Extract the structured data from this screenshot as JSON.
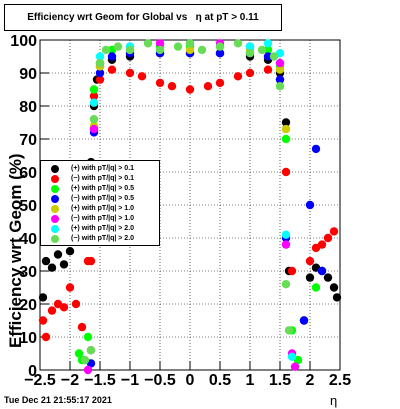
{
  "title": "Efficiency wrt Geom for Global vs   η at pT > 0.11",
  "datestamp": "Tue Dec 21 21:55:17 2021",
  "chart_data": {
    "type": "scatter",
    "title": "Efficiency wrt Geom for Global vs   η at pT > 0.11",
    "xlabel": "η",
    "ylabel": "Efficiency wrt Geom (%)",
    "xlim": [
      -2.5,
      2.5
    ],
    "ylim": [
      0,
      100
    ],
    "x_ticks": [
      "−2.5",
      "−2",
      "−1.5",
      "−1",
      "−0.5",
      "0",
      "0.5",
      "1",
      "1.5",
      "2",
      "2.5"
    ],
    "y_ticks": [
      "0",
      "10",
      "20",
      "30",
      "40",
      "50",
      "60",
      "70",
      "80",
      "90",
      "100"
    ],
    "grid": true,
    "legend_position": "center-left",
    "series": [
      {
        "name": "(+) with pT/|q| > 0.1",
        "color": "#000000",
        "points": [
          [
            -2.45,
            22
          ],
          [
            -2.4,
            33
          ],
          [
            -2.3,
            31
          ],
          [
            -2.2,
            35
          ],
          [
            -2.1,
            32
          ],
          [
            -2.0,
            36
          ],
          [
            -1.9,
            40
          ],
          [
            -1.8,
            45
          ],
          [
            -1.7,
            48
          ],
          [
            -1.65,
            63
          ],
          [
            -1.6,
            80
          ],
          [
            -1.55,
            88
          ],
          [
            -1.5,
            92
          ],
          [
            -1.3,
            94
          ],
          [
            -1.0,
            95
          ],
          [
            -0.5,
            96
          ],
          [
            0,
            96
          ],
          [
            0.5,
            96
          ],
          [
            1.0,
            95
          ],
          [
            1.3,
            94
          ],
          [
            1.5,
            90
          ],
          [
            1.6,
            75
          ],
          [
            1.65,
            30
          ],
          [
            1.9,
            15
          ],
          [
            2.0,
            28
          ],
          [
            2.1,
            31
          ],
          [
            2.2,
            30
          ],
          [
            2.3,
            28
          ],
          [
            2.4,
            25
          ],
          [
            2.45,
            22
          ]
        ]
      },
      {
        "name": "(−) with pT/|q| > 0.1",
        "color": "#ff0000",
        "points": [
          [
            -2.45,
            15
          ],
          [
            -2.4,
            10
          ],
          [
            -2.3,
            18
          ],
          [
            -2.2,
            20
          ],
          [
            -2.1,
            19
          ],
          [
            -2.0,
            25
          ],
          [
            -1.9,
            20
          ],
          [
            -1.8,
            13
          ],
          [
            -1.7,
            33
          ],
          [
            -1.65,
            33
          ],
          [
            -1.6,
            83
          ],
          [
            -1.5,
            88
          ],
          [
            -1.3,
            91
          ],
          [
            -1.0,
            90
          ],
          [
            -0.8,
            89
          ],
          [
            -0.5,
            87
          ],
          [
            -0.3,
            86
          ],
          [
            0,
            85
          ],
          [
            0.3,
            86
          ],
          [
            0.5,
            87
          ],
          [
            0.8,
            89
          ],
          [
            1.0,
            90
          ],
          [
            1.3,
            91
          ],
          [
            1.5,
            88
          ],
          [
            1.6,
            60
          ],
          [
            1.7,
            30
          ],
          [
            2.0,
            33
          ],
          [
            2.1,
            37
          ],
          [
            2.2,
            38
          ],
          [
            2.3,
            40
          ],
          [
            2.4,
            42
          ]
        ]
      },
      {
        "name": "(+) with pT/|q| > 0.5",
        "color": "#00ff00",
        "points": [
          [
            -1.85,
            5
          ],
          [
            -1.8,
            3
          ],
          [
            -1.7,
            10
          ],
          [
            -1.6,
            85
          ],
          [
            -1.5,
            93
          ],
          [
            -1.3,
            97
          ],
          [
            -1.0,
            98
          ],
          [
            -0.5,
            98
          ],
          [
            0,
            98
          ],
          [
            0.5,
            98
          ],
          [
            1.0,
            98
          ],
          [
            1.3,
            97
          ],
          [
            1.5,
            92
          ],
          [
            1.6,
            70
          ],
          [
            1.7,
            12
          ],
          [
            1.8,
            3
          ],
          [
            2.1,
            25
          ]
        ]
      },
      {
        "name": "(−) with pT/|q| > 0.5",
        "color": "#0000ff",
        "points": [
          [
            -1.65,
            2
          ],
          [
            -1.6,
            72
          ],
          [
            -1.5,
            90
          ],
          [
            -1.3,
            95
          ],
          [
            -1.0,
            96
          ],
          [
            -0.5,
            96
          ],
          [
            0,
            96
          ],
          [
            0.5,
            96
          ],
          [
            1.0,
            96
          ],
          [
            1.3,
            95
          ],
          [
            1.5,
            88
          ],
          [
            1.6,
            40
          ],
          [
            1.9,
            15
          ],
          [
            2.0,
            50
          ],
          [
            2.1,
            67
          ],
          [
            2.2,
            30
          ]
        ]
      },
      {
        "name": "(+) with pT/|q| > 1.0",
        "color": "#cccc00",
        "points": [
          [
            -1.6,
            74
          ],
          [
            -1.5,
            92
          ],
          [
            -1.0,
            97
          ],
          [
            0,
            97
          ],
          [
            1.0,
            97
          ],
          [
            1.5,
            91
          ],
          [
            1.6,
            73
          ]
        ]
      },
      {
        "name": "(−) with pT/|q| > 1.0",
        "color": "#ff00ff",
        "points": [
          [
            -1.7,
            0
          ],
          [
            -1.65,
            6
          ],
          [
            -1.6,
            73
          ],
          [
            -1.5,
            93
          ],
          [
            -1.0,
            98
          ],
          [
            -0.5,
            99
          ],
          [
            0,
            99
          ],
          [
            0.5,
            99
          ],
          [
            1.0,
            98
          ],
          [
            1.5,
            93
          ],
          [
            1.6,
            38
          ],
          [
            1.7,
            5
          ],
          [
            1.75,
            1
          ]
        ]
      },
      {
        "name": "(+) with pT/|q| > 2.0",
        "color": "#00ffff",
        "points": [
          [
            -1.6,
            81
          ],
          [
            -1.5,
            95
          ],
          [
            -1.0,
            98
          ],
          [
            0,
            99
          ],
          [
            1.0,
            98
          ],
          [
            1.3,
            99
          ],
          [
            1.5,
            96
          ],
          [
            1.6,
            41
          ],
          [
            1.7,
            4
          ]
        ]
      },
      {
        "name": "(−) with pT/|q| > 2.0",
        "color": "#66dd55",
        "points": [
          [
            -1.75,
            3
          ],
          [
            -1.65,
            6
          ],
          [
            -1.6,
            76
          ],
          [
            -1.5,
            93
          ],
          [
            -1.4,
            97
          ],
          [
            -1.2,
            98
          ],
          [
            -1.0,
            97
          ],
          [
            -0.7,
            99
          ],
          [
            -0.5,
            97
          ],
          [
            -0.2,
            98
          ],
          [
            0,
            99
          ],
          [
            0.2,
            97
          ],
          [
            0.5,
            98
          ],
          [
            0.8,
            99
          ],
          [
            1.0,
            96
          ],
          [
            1.2,
            97
          ],
          [
            1.4,
            95
          ],
          [
            1.5,
            86
          ],
          [
            1.6,
            26
          ],
          [
            1.65,
            12
          ]
        ]
      }
    ]
  }
}
